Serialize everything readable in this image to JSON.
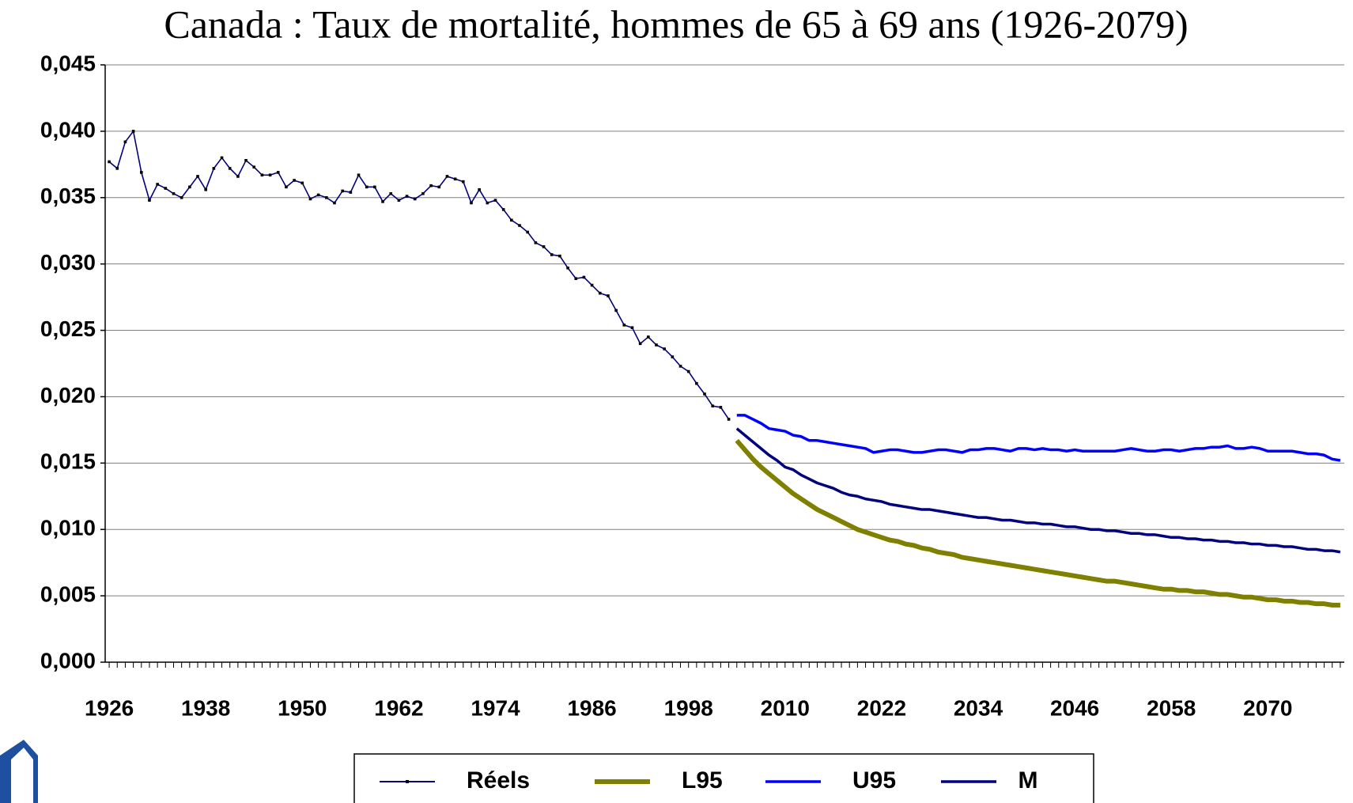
{
  "chart_data": {
    "type": "line",
    "title": "Canada : Taux de mortalité, hommes de 65 à 69 ans (1926-2079)",
    "xlim": [
      1925.5,
      2079.5
    ],
    "xticks": [
      1926,
      1938,
      1950,
      1962,
      1974,
      1986,
      1998,
      2010,
      2022,
      2034,
      2046,
      2058,
      2070
    ],
    "ylim": [
      0,
      0.045
    ],
    "yticks": [
      {
        "value": 0,
        "label": "0,000"
      },
      {
        "value": 0.005,
        "label": "0,005"
      },
      {
        "value": 0.01,
        "label": "0,010"
      },
      {
        "value": 0.015,
        "label": "0,015"
      },
      {
        "value": 0.02,
        "label": "0,020"
      },
      {
        "value": 0.025,
        "label": "0,025"
      },
      {
        "value": 0.03,
        "label": "0,030"
      },
      {
        "value": 0.035,
        "label": "0,035"
      },
      {
        "value": 0.04,
        "label": "0,040"
      },
      {
        "value": 0.045,
        "label": "0,045"
      }
    ],
    "grid": true,
    "legend": "bottom",
    "series": [
      {
        "name": "Réels",
        "color": "#000080",
        "marker": true,
        "x": [
          1926,
          1927,
          1928,
          1929,
          1930,
          1931,
          1932,
          1933,
          1934,
          1935,
          1936,
          1937,
          1938,
          1939,
          1940,
          1941,
          1942,
          1943,
          1944,
          1945,
          1946,
          1947,
          1948,
          1949,
          1950,
          1951,
          1952,
          1953,
          1954,
          1955,
          1956,
          1957,
          1958,
          1959,
          1960,
          1961,
          1962,
          1963,
          1964,
          1965,
          1966,
          1967,
          1968,
          1969,
          1970,
          1971,
          1972,
          1973,
          1974,
          1975,
          1976,
          1977,
          1978,
          1979,
          1980,
          1981,
          1982,
          1983,
          1984,
          1985,
          1986,
          1987,
          1988,
          1989,
          1990,
          1991,
          1992,
          1993,
          1994,
          1995,
          1996,
          1997,
          1998,
          1999,
          2000,
          2001,
          2002,
          2003
        ],
        "values": [
          0.0377,
          0.0372,
          0.0392,
          0.04,
          0.0369,
          0.0348,
          0.036,
          0.0357,
          0.0353,
          0.035,
          0.0358,
          0.0366,
          0.0356,
          0.0372,
          0.038,
          0.0372,
          0.0366,
          0.0378,
          0.0373,
          0.0367,
          0.0367,
          0.0369,
          0.0358,
          0.0363,
          0.0361,
          0.0349,
          0.0352,
          0.035,
          0.0346,
          0.0355,
          0.0354,
          0.0367,
          0.0358,
          0.0358,
          0.0347,
          0.0353,
          0.0348,
          0.0351,
          0.0349,
          0.0353,
          0.0359,
          0.0358,
          0.0366,
          0.0364,
          0.0362,
          0.0346,
          0.0356,
          0.0346,
          0.0348,
          0.0341,
          0.0333,
          0.0329,
          0.0324,
          0.0316,
          0.0313,
          0.0307,
          0.0306,
          0.0297,
          0.0289,
          0.029,
          0.0284,
          0.0278,
          0.0276,
          0.0265,
          0.0254,
          0.0252,
          0.024,
          0.0245,
          0.0239,
          0.0236,
          0.023,
          0.0223,
          0.0219,
          0.021,
          0.0202,
          0.0193,
          0.0192,
          0.0183
        ]
      },
      {
        "name": "L95",
        "color": "#808000",
        "x": [
          2004,
          2005,
          2006,
          2007,
          2008,
          2009,
          2010,
          2011,
          2012,
          2013,
          2014,
          2015,
          2016,
          2017,
          2018,
          2019,
          2020,
          2021,
          2022,
          2023,
          2024,
          2025,
          2026,
          2027,
          2028,
          2029,
          2030,
          2031,
          2032,
          2033,
          2034,
          2035,
          2036,
          2037,
          2038,
          2039,
          2040,
          2041,
          2042,
          2043,
          2044,
          2045,
          2046,
          2047,
          2048,
          2049,
          2050,
          2051,
          2052,
          2053,
          2054,
          2055,
          2056,
          2057,
          2058,
          2059,
          2060,
          2061,
          2062,
          2063,
          2064,
          2065,
          2066,
          2067,
          2068,
          2069,
          2070,
          2071,
          2072,
          2073,
          2074,
          2075,
          2076,
          2077,
          2078,
          2079
        ],
        "values": [
          0.0167,
          0.016,
          0.0153,
          0.0147,
          0.0142,
          0.0137,
          0.0132,
          0.0127,
          0.0123,
          0.0119,
          0.0115,
          0.0112,
          0.0109,
          0.0106,
          0.0103,
          0.01,
          0.0098,
          0.0096,
          0.0094,
          0.0092,
          0.0091,
          0.0089,
          0.0088,
          0.0086,
          0.0085,
          0.0083,
          0.0082,
          0.0081,
          0.0079,
          0.0078,
          0.0077,
          0.0076,
          0.0075,
          0.0074,
          0.0073,
          0.0072,
          0.0071,
          0.007,
          0.0069,
          0.0068,
          0.0067,
          0.0066,
          0.0065,
          0.0064,
          0.0063,
          0.0062,
          0.0061,
          0.0061,
          0.006,
          0.0059,
          0.0058,
          0.0057,
          0.0056,
          0.0055,
          0.0055,
          0.0054,
          0.0054,
          0.0053,
          0.0053,
          0.0052,
          0.0051,
          0.0051,
          0.005,
          0.0049,
          0.0049,
          0.0048,
          0.0047,
          0.0047,
          0.0046,
          0.0046,
          0.0045,
          0.0045,
          0.0044,
          0.0044,
          0.0043,
          0.0043
        ]
      },
      {
        "name": "U95",
        "color": "#0000ff",
        "x": [
          2004,
          2005,
          2006,
          2007,
          2008,
          2009,
          2010,
          2011,
          2012,
          2013,
          2014,
          2015,
          2016,
          2017,
          2018,
          2019,
          2020,
          2021,
          2022,
          2023,
          2024,
          2025,
          2026,
          2027,
          2028,
          2029,
          2030,
          2031,
          2032,
          2033,
          2034,
          2035,
          2036,
          2037,
          2038,
          2039,
          2040,
          2041,
          2042,
          2043,
          2044,
          2045,
          2046,
          2047,
          2048,
          2049,
          2050,
          2051,
          2052,
          2053,
          2054,
          2055,
          2056,
          2057,
          2058,
          2059,
          2060,
          2061,
          2062,
          2063,
          2064,
          2065,
          2066,
          2067,
          2068,
          2069,
          2070,
          2071,
          2072,
          2073,
          2074,
          2075,
          2076,
          2077,
          2078,
          2079
        ],
        "values": [
          0.0186,
          0.0186,
          0.0183,
          0.018,
          0.0176,
          0.0175,
          0.0174,
          0.0171,
          0.017,
          0.0167,
          0.0167,
          0.0166,
          0.0165,
          0.0164,
          0.0163,
          0.0162,
          0.0161,
          0.0158,
          0.0159,
          0.016,
          0.016,
          0.0159,
          0.0158,
          0.0158,
          0.0159,
          0.016,
          0.016,
          0.0159,
          0.0158,
          0.016,
          0.016,
          0.0161,
          0.0161,
          0.016,
          0.0159,
          0.0161,
          0.0161,
          0.016,
          0.0161,
          0.016,
          0.016,
          0.0159,
          0.016,
          0.0159,
          0.0159,
          0.0159,
          0.0159,
          0.0159,
          0.016,
          0.0161,
          0.016,
          0.0159,
          0.0159,
          0.016,
          0.016,
          0.0159,
          0.016,
          0.0161,
          0.0161,
          0.0162,
          0.0162,
          0.0163,
          0.0161,
          0.0161,
          0.0162,
          0.0161,
          0.0159,
          0.0159,
          0.0159,
          0.0159,
          0.0158,
          0.0157,
          0.0157,
          0.0156,
          0.0153,
          0.0152
        ]
      },
      {
        "name": "M",
        "color": "#000080",
        "x": [
          2004,
          2005,
          2006,
          2007,
          2008,
          2009,
          2010,
          2011,
          2012,
          2013,
          2014,
          2015,
          2016,
          2017,
          2018,
          2019,
          2020,
          2021,
          2022,
          2023,
          2024,
          2025,
          2026,
          2027,
          2028,
          2029,
          2030,
          2031,
          2032,
          2033,
          2034,
          2035,
          2036,
          2037,
          2038,
          2039,
          2040,
          2041,
          2042,
          2043,
          2044,
          2045,
          2046,
          2047,
          2048,
          2049,
          2050,
          2051,
          2052,
          2053,
          2054,
          2055,
          2056,
          2057,
          2058,
          2059,
          2060,
          2061,
          2062,
          2063,
          2064,
          2065,
          2066,
          2067,
          2068,
          2069,
          2070,
          2071,
          2072,
          2073,
          2074,
          2075,
          2076,
          2077,
          2078,
          2079
        ],
        "values": [
          0.0176,
          0.0171,
          0.0166,
          0.0161,
          0.0156,
          0.0152,
          0.0147,
          0.0145,
          0.0141,
          0.0138,
          0.0135,
          0.0133,
          0.0131,
          0.0128,
          0.0126,
          0.0125,
          0.0123,
          0.0122,
          0.0121,
          0.0119,
          0.0118,
          0.0117,
          0.0116,
          0.0115,
          0.0115,
          0.0114,
          0.0113,
          0.0112,
          0.0111,
          0.011,
          0.0109,
          0.0109,
          0.0108,
          0.0107,
          0.0107,
          0.0106,
          0.0105,
          0.0105,
          0.0104,
          0.0104,
          0.0103,
          0.0102,
          0.0102,
          0.0101,
          0.01,
          0.01,
          0.0099,
          0.0099,
          0.0098,
          0.0097,
          0.0097,
          0.0096,
          0.0096,
          0.0095,
          0.0094,
          0.0094,
          0.0093,
          0.0093,
          0.0092,
          0.0092,
          0.0091,
          0.0091,
          0.009,
          0.009,
          0.0089,
          0.0089,
          0.0088,
          0.0088,
          0.0087,
          0.0087,
          0.0086,
          0.0085,
          0.0085,
          0.0084,
          0.0084,
          0.0083
        ]
      }
    ]
  }
}
